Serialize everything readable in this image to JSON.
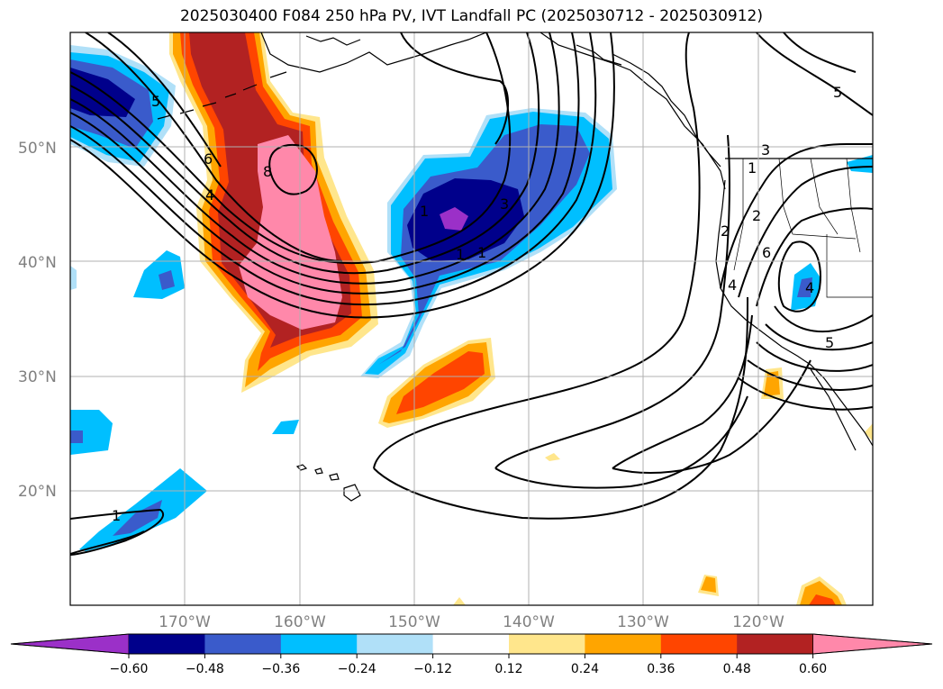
{
  "title": "2025030400 F084 250 hPa PV, IVT Landfall PC (2025030712 - 2025030912)",
  "axes": {
    "lat_labels": [
      "50°N",
      "40°N",
      "30°N",
      "20°N"
    ],
    "lon_labels": [
      "170°W",
      "160°W",
      "150°W",
      "140°W",
      "130°W",
      "120°W"
    ]
  },
  "colorbar": {
    "ticks": [
      "−0.60",
      "−0.48",
      "−0.36",
      "−0.24",
      "−0.12",
      "0.12",
      "0.24",
      "0.36",
      "0.48",
      "0.60"
    ],
    "colors": [
      "#9b30c8",
      "#00008b",
      "#3a5bcb",
      "#00bfff",
      "#b0e0f8",
      "#ffffff",
      "#ffe68c",
      "#ffa500",
      "#ff4500",
      "#b22222",
      "#ff88aa"
    ]
  },
  "contour_labels": [
    "5",
    "6",
    "4",
    "8",
    "1",
    "3",
    "1",
    "1",
    "5",
    "2",
    "3",
    "1",
    "2",
    "4",
    "6",
    "4",
    "5",
    "1"
  ],
  "colors": {
    "land_line": "#000000",
    "grid": "#b0b0b0",
    "contour": "#000000"
  }
}
